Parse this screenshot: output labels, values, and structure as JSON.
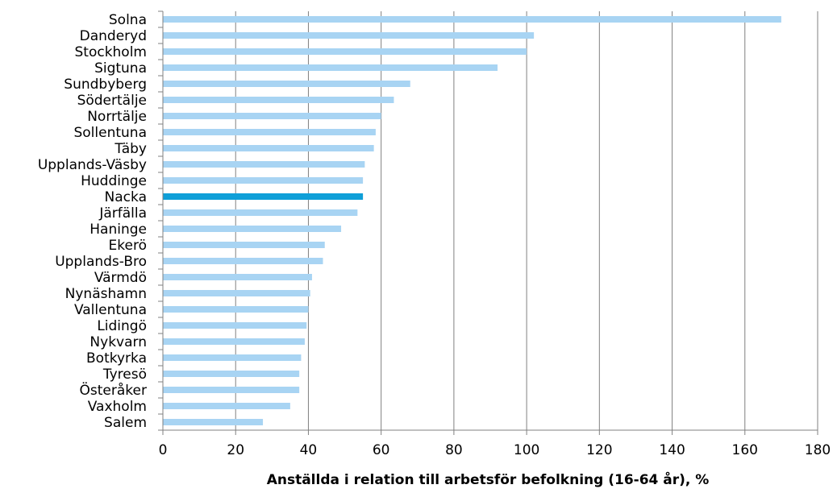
{
  "chart_data": {
    "type": "bar",
    "orientation": "horizontal",
    "title": "",
    "xlabel": "Anställda i relation till arbetsför befolkning (16-64 år), %",
    "ylabel": "",
    "xlim": [
      0,
      180
    ],
    "xticks": [
      0,
      20,
      40,
      60,
      80,
      100,
      120,
      140,
      160,
      180
    ],
    "grid": "vertical",
    "legend": "none",
    "categories": [
      "Solna",
      "Danderyd",
      "Stockholm",
      "Sigtuna",
      "Sundbyberg",
      "Södertälje",
      "Norrtälje",
      "Sollentuna",
      "Täby",
      "Upplands-Väsby",
      "Huddinge",
      "Nacka",
      "Järfälla",
      "Haninge",
      "Ekerö",
      "Upplands-Bro",
      "Värmdö",
      "Nynäshamn",
      "Vallentuna",
      "Lidingö",
      "Nykvarn",
      "Botkyrka",
      "Tyresö",
      "Österåker",
      "Vaxholm",
      "Salem"
    ],
    "values": [
      170,
      102,
      100,
      92,
      68,
      63.5,
      60,
      58.5,
      58,
      55.5,
      55,
      55,
      53.5,
      49,
      44.5,
      44,
      41,
      40.5,
      40,
      39.5,
      39,
      38,
      37.5,
      37.5,
      35,
      27.5
    ],
    "highlight": "Nacka",
    "colors": {
      "bar": "#a8d4f3",
      "highlight": "#0f9fd8",
      "grid": "#808080",
      "axis": "#808080"
    }
  }
}
